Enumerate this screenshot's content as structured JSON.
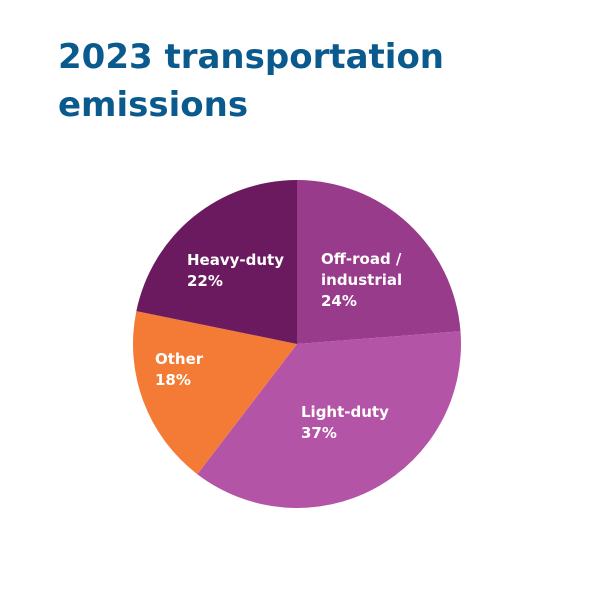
{
  "title": "2023 transportation emissions",
  "chart_data": {
    "type": "pie",
    "title": "2023 transportation emissions",
    "start_angle_deg": 0,
    "direction": "clockwise",
    "slices": [
      {
        "label_lines": [
          "Off-road /",
          "industrial"
        ],
        "value": 24,
        "value_label": "24%",
        "color": "#993b8b"
      },
      {
        "label_lines": [
          "Light-duty"
        ],
        "value": 37,
        "value_label": "37%",
        "color": "#b354a6"
      },
      {
        "label_lines": [
          "Other"
        ],
        "value": 18,
        "value_label": "18%",
        "color": "#f47b35"
      },
      {
        "label_lines": [
          "Heavy-duty"
        ],
        "value": 22,
        "value_label": "22%",
        "color": "#6b1a5f"
      }
    ]
  }
}
